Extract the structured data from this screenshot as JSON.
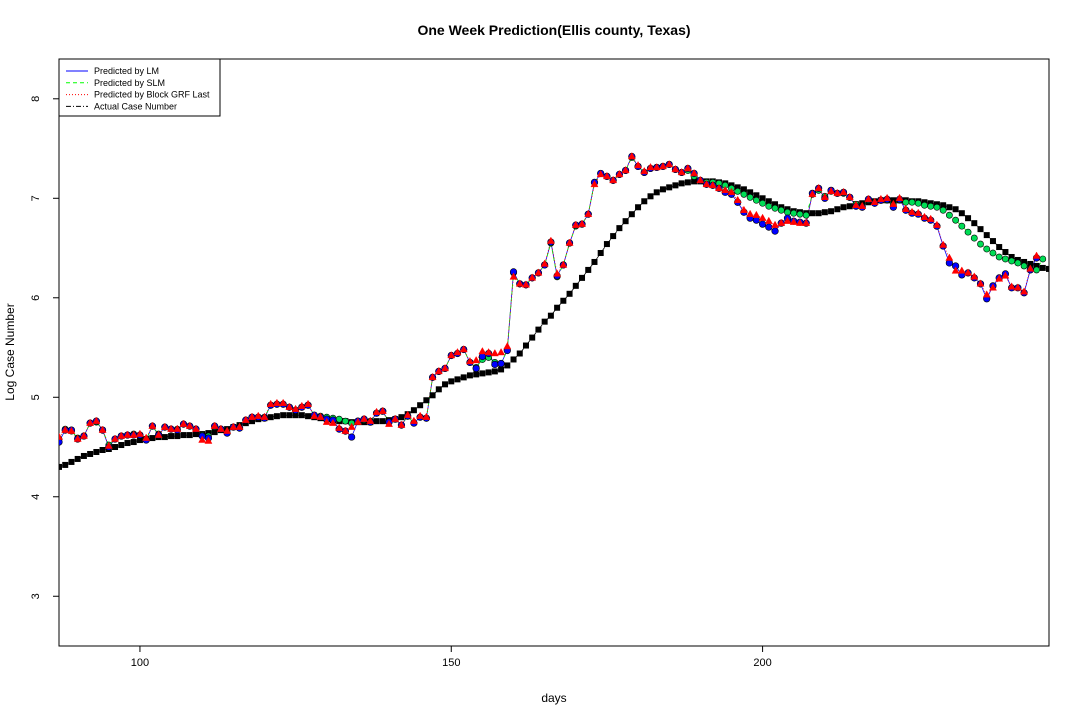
{
  "chart_data": {
    "type": "scatter",
    "title": "One Week Prediction(Ellis county, Texas)",
    "xlabel": "days",
    "ylabel": "Log Case Number",
    "xlim": [
      87,
      246
    ],
    "ylim": [
      2.5,
      8.4
    ],
    "xticks": [
      100,
      150,
      200
    ],
    "yticks": [
      3,
      4,
      5,
      6,
      7,
      8
    ],
    "grid": false,
    "legend_position": "top-left",
    "legend": [
      {
        "label": "Predicted by LM",
        "color": "#0000ff",
        "line": "solid"
      },
      {
        "label": "Predicted by SLM",
        "color": "#00ff00",
        "line": "dashed"
      },
      {
        "label": "Predicted by Block GRF Last",
        "color": "#ff0000",
        "line": "dotted"
      },
      {
        "label": "Actual Case Number",
        "color": "#000000",
        "line": "dashdot"
      }
    ],
    "x_start": 87,
    "series": [
      {
        "name": "Actual Case Number",
        "marker": "square",
        "color": "#000000",
        "values": [
          4.3,
          4.32,
          4.35,
          4.38,
          4.41,
          4.43,
          4.45,
          4.47,
          4.48,
          4.5,
          4.52,
          4.54,
          4.55,
          4.57,
          4.58,
          4.59,
          4.6,
          4.6,
          4.61,
          4.61,
          4.62,
          4.62,
          4.63,
          4.63,
          4.64,
          4.65,
          4.67,
          4.68,
          4.7,
          4.72,
          4.74,
          4.76,
          4.78,
          4.79,
          4.8,
          4.81,
          4.82,
          4.82,
          4.82,
          4.82,
          4.81,
          4.8,
          4.79,
          4.78,
          4.77,
          4.76,
          4.76,
          4.75,
          4.75,
          4.75,
          4.75,
          4.76,
          4.76,
          4.77,
          4.78,
          4.8,
          4.83,
          4.87,
          4.92,
          4.97,
          5.02,
          5.08,
          5.13,
          5.16,
          5.18,
          5.2,
          5.22,
          5.23,
          5.24,
          5.25,
          5.26,
          5.28,
          5.32,
          5.38,
          5.44,
          5.52,
          5.6,
          5.68,
          5.76,
          5.82,
          5.9,
          5.97,
          6.04,
          6.12,
          6.2,
          6.28,
          6.36,
          6.45,
          6.54,
          6.62,
          6.7,
          6.77,
          6.84,
          6.91,
          6.97,
          7.02,
          7.06,
          7.09,
          7.11,
          7.13,
          7.15,
          7.16,
          7.17,
          7.17,
          7.17,
          7.17,
          7.16,
          7.15,
          7.13,
          7.11,
          7.09,
          7.06,
          7.03,
          7.0,
          6.97,
          6.94,
          6.91,
          6.89,
          6.87,
          6.86,
          6.85,
          6.85,
          6.85,
          6.86,
          6.87,
          6.89,
          6.91,
          6.92,
          6.94,
          6.95,
          6.96,
          6.97,
          6.98,
          6.98,
          6.98,
          6.98,
          6.98,
          6.97,
          6.97,
          6.96,
          6.95,
          6.94,
          6.93,
          6.91,
          6.89,
          6.85,
          6.8,
          6.75,
          6.69,
          6.63,
          6.57,
          6.51,
          6.46,
          6.41,
          6.38,
          6.36,
          6.34,
          6.32,
          6.3,
          6.29,
          6.29,
          6.3
        ]
      },
      {
        "name": "Predicted by LM",
        "marker": "circle",
        "color": "#0000ff",
        "values": [
          4.55,
          4.67,
          4.67,
          4.58,
          4.61,
          4.74,
          4.76,
          4.67,
          4.5,
          4.58,
          4.61,
          4.62,
          4.62,
          4.62,
          4.57,
          4.71,
          4.62,
          4.7,
          4.68,
          4.67,
          4.73,
          4.71,
          4.68,
          4.61,
          4.59,
          4.71,
          4.68,
          4.64,
          4.7,
          4.69,
          4.77,
          4.8,
          4.8,
          4.79,
          4.92,
          4.93,
          4.93,
          4.9,
          4.87,
          4.9,
          4.92,
          4.82,
          4.8,
          4.78,
          4.77,
          4.68,
          4.66,
          4.6,
          4.76,
          4.78,
          4.75,
          4.84,
          4.86,
          4.75,
          4.78,
          4.72,
          4.81,
          4.74,
          4.8,
          4.79,
          5.2,
          5.26,
          5.29,
          5.42,
          5.44,
          5.48,
          5.35,
          5.29,
          5.41,
          5.44,
          5.33,
          5.34,
          5.47,
          6.26,
          6.14,
          6.13,
          6.2,
          6.25,
          6.33,
          6.56,
          6.22,
          6.33,
          6.55,
          6.73,
          6.74,
          6.84,
          7.16,
          7.25,
          7.22,
          7.18,
          7.24,
          7.28,
          7.42,
          7.32,
          7.26,
          7.3,
          7.31,
          7.32,
          7.34,
          7.29,
          7.26,
          7.3,
          7.25,
          7.18,
          7.14,
          7.13,
          7.1,
          7.06,
          7.04,
          6.96,
          6.86,
          6.8,
          6.78,
          6.74,
          6.71,
          6.67,
          6.75,
          6.8,
          6.77,
          6.76,
          6.75,
          7.05,
          7.1,
          7.0,
          7.08,
          7.05,
          7.06,
          7.01,
          6.92,
          6.91,
          6.99,
          6.95,
          6.98,
          6.99,
          6.91,
          6.99,
          6.88,
          6.85,
          6.84,
          6.8,
          6.78,
          6.72,
          6.52,
          6.35,
          6.32,
          6.23,
          6.25,
          6.2,
          6.14,
          5.99,
          6.12,
          6.2,
          6.24,
          6.1,
          6.1,
          6.05,
          6.28,
          6.4
        ]
      },
      {
        "name": "Predicted by SLM",
        "marker": "diamond",
        "color": "#00ff00",
        "values": [
          4.58,
          4.68,
          4.66,
          4.59,
          4.61,
          4.74,
          4.75,
          4.67,
          4.52,
          4.58,
          4.61,
          4.62,
          4.63,
          4.62,
          4.58,
          4.71,
          4.63,
          4.7,
          4.68,
          4.68,
          4.73,
          4.71,
          4.68,
          4.62,
          4.61,
          4.7,
          4.68,
          4.64,
          4.7,
          4.69,
          4.77,
          4.8,
          4.8,
          4.8,
          4.92,
          4.93,
          4.93,
          4.9,
          4.87,
          4.9,
          4.92,
          4.82,
          4.81,
          4.8,
          4.79,
          4.78,
          4.76,
          4.74,
          4.76,
          4.77,
          4.76,
          4.84,
          4.86,
          4.75,
          4.78,
          4.72,
          4.81,
          4.74,
          4.8,
          4.79,
          5.2,
          5.26,
          5.29,
          5.42,
          5.44,
          5.48,
          5.35,
          5.3,
          5.38,
          5.4,
          5.35,
          5.34,
          5.48,
          6.25,
          6.14,
          6.13,
          6.2,
          6.25,
          6.33,
          6.55,
          6.21,
          6.33,
          6.55,
          6.72,
          6.74,
          6.84,
          7.16,
          7.25,
          7.22,
          7.18,
          7.24,
          7.28,
          7.41,
          7.32,
          7.26,
          7.3,
          7.31,
          7.32,
          7.34,
          7.29,
          7.26,
          7.28,
          7.22,
          7.18,
          7.16,
          7.16,
          7.15,
          7.13,
          7.1,
          7.07,
          7.04,
          7.01,
          6.98,
          6.95,
          6.92,
          6.9,
          6.88,
          6.86,
          6.85,
          6.84,
          6.83,
          7.04,
          7.08,
          7.02,
          7.07,
          7.05,
          7.05,
          7.01,
          6.94,
          6.92,
          6.98,
          6.96,
          6.98,
          6.98,
          6.93,
          6.98,
          6.96,
          6.96,
          6.95,
          6.93,
          6.92,
          6.91,
          6.88,
          6.83,
          6.78,
          6.72,
          6.66,
          6.6,
          6.54,
          6.49,
          6.45,
          6.41,
          6.39,
          6.37,
          6.35,
          6.32,
          6.29,
          6.28,
          6.39
        ]
      },
      {
        "name": "Predicted by Block GRF Last",
        "marker": "triangle",
        "color": "#ff0000",
        "values": [
          4.6,
          4.67,
          4.66,
          4.58,
          4.61,
          4.74,
          4.76,
          4.67,
          4.51,
          4.58,
          4.61,
          4.62,
          4.62,
          4.63,
          4.59,
          4.71,
          4.62,
          4.7,
          4.68,
          4.68,
          4.73,
          4.71,
          4.68,
          4.57,
          4.56,
          4.71,
          4.68,
          4.66,
          4.7,
          4.7,
          4.77,
          4.8,
          4.81,
          4.8,
          4.93,
          4.94,
          4.94,
          4.9,
          4.88,
          4.91,
          4.93,
          4.81,
          4.8,
          4.75,
          4.74,
          4.69,
          4.66,
          4.7,
          4.75,
          4.78,
          4.76,
          4.85,
          4.86,
          4.73,
          4.78,
          4.72,
          4.82,
          4.76,
          4.81,
          4.8,
          5.2,
          5.26,
          5.29,
          5.42,
          5.45,
          5.48,
          5.36,
          5.37,
          5.46,
          5.45,
          5.44,
          5.45,
          5.51,
          6.21,
          6.14,
          6.13,
          6.2,
          6.25,
          6.34,
          6.57,
          6.24,
          6.33,
          6.55,
          6.73,
          6.74,
          6.84,
          7.14,
          7.24,
          7.22,
          7.18,
          7.24,
          7.28,
          7.42,
          7.33,
          7.27,
          7.31,
          7.31,
          7.32,
          7.34,
          7.29,
          7.26,
          7.3,
          7.25,
          7.18,
          7.14,
          7.13,
          7.1,
          7.08,
          7.06,
          6.98,
          6.88,
          6.84,
          6.83,
          6.8,
          6.77,
          6.73,
          6.75,
          6.77,
          6.76,
          6.75,
          6.75,
          7.04,
          7.1,
          7.01,
          7.07,
          7.05,
          7.06,
          7.01,
          6.93,
          6.92,
          6.99,
          6.96,
          6.99,
          7.0,
          6.94,
          7.0,
          6.89,
          6.86,
          6.85,
          6.81,
          6.79,
          6.73,
          6.53,
          6.4,
          6.27,
          6.27,
          6.25,
          6.21,
          6.14,
          6.03,
          6.1,
          6.19,
          6.22,
          6.11,
          6.1,
          6.06,
          6.29,
          6.42
        ]
      }
    ]
  }
}
